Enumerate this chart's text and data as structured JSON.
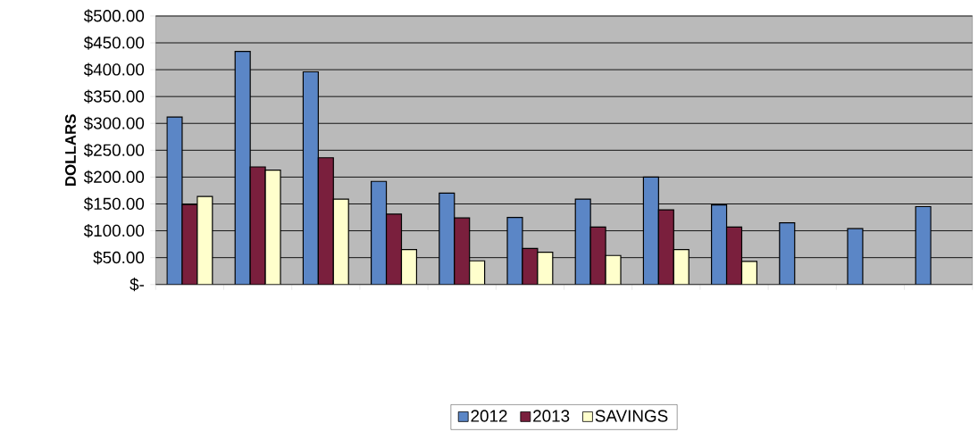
{
  "chart_data": {
    "type": "bar",
    "ylabel": "DOLLARS",
    "categories": [
      null,
      null,
      null,
      null,
      null,
      null,
      null,
      null,
      null,
      null,
      null,
      null
    ],
    "series": [
      {
        "name": "2012",
        "color": "#5b86c6",
        "values": [
          312,
          434,
          396,
          192,
          170,
          125,
          159,
          200,
          148,
          115,
          104,
          145
        ]
      },
      {
        "name": "2013",
        "color": "#7a1f3d",
        "values": [
          149,
          219,
          236,
          131,
          124,
          67,
          107,
          139,
          107,
          null,
          null,
          null
        ]
      },
      {
        "name": "SAVINGS",
        "color": "#ffffcc",
        "values": [
          164,
          213,
          159,
          65,
          44,
          60,
          54,
          65,
          43,
          null,
          null,
          null
        ]
      }
    ],
    "ylim": [
      0,
      500
    ],
    "yticks": [
      {
        "value": 0,
        "label": "$-"
      },
      {
        "value": 50,
        "label": "$50.00"
      },
      {
        "value": 100,
        "label": "$100.00"
      },
      {
        "value": 150,
        "label": "$150.00"
      },
      {
        "value": 200,
        "label": "$200.00"
      },
      {
        "value": 250,
        "label": "$250.00"
      },
      {
        "value": 300,
        "label": "$300.00"
      },
      {
        "value": 350,
        "label": "$350.00"
      },
      {
        "value": 400,
        "label": "$400.00"
      },
      {
        "value": 450,
        "label": "$450.00"
      },
      {
        "value": 500,
        "label": "$500.00"
      }
    ],
    "grid": "y",
    "legend": "bottom"
  }
}
